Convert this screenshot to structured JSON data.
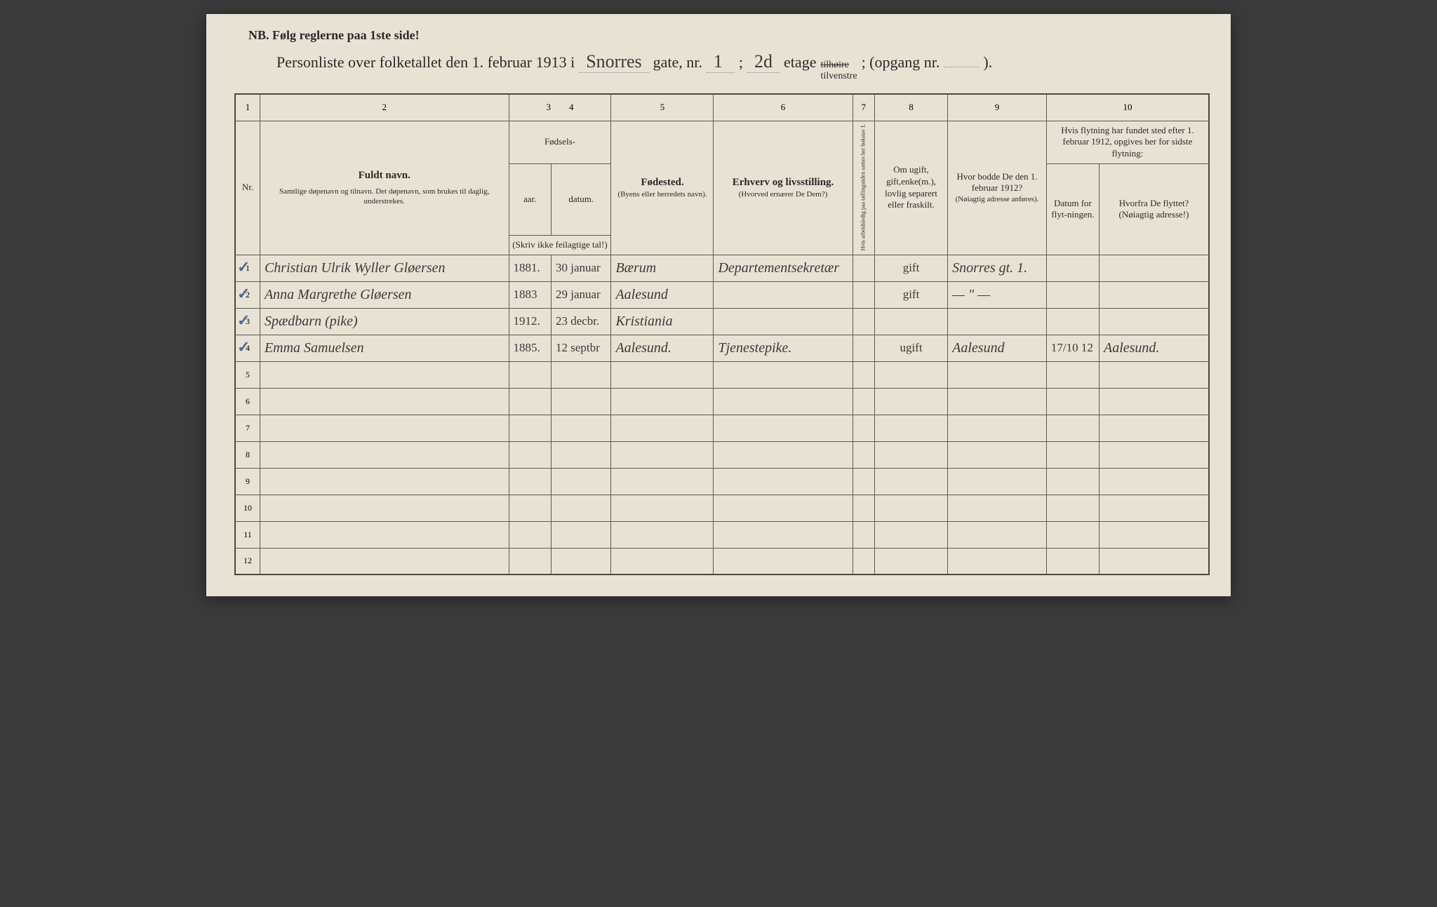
{
  "nb_header": "NB.  Følg reglerne paa 1ste side!",
  "title": {
    "prefix": "Personliste over folketallet den 1. februar 1913 i",
    "street": "Snorres",
    "gate_label": "gate, nr.",
    "gate_nr": "1",
    "semicolon": ";",
    "etage_nr": "2d",
    "etage_label": "etage",
    "tilhoire": "tilhøire",
    "tilvenstre": "tilvenstre",
    "opgang": "; (opgang nr.",
    "opgang_val": "",
    "close": ")."
  },
  "colnums": [
    "1",
    "2",
    "3",
    "4",
    "5",
    "6",
    "7",
    "8",
    "9",
    "10"
  ],
  "headers": {
    "nr": "Nr.",
    "fuldt": "Fuldt navn.",
    "fuldt_sub": "Samtlige døpenavn og tilnavn.  Det døpenavn, som brukes til daglig, understrekes.",
    "fodsels": "Fødsels-",
    "aar": "aar.",
    "datum": "datum.",
    "skriv": "(Skriv ikke feilagtige tal!)",
    "fodested": "Fødested.",
    "fodested_sub": "(Byens eller herredets navn).",
    "erhverv": "Erhverv og livsstilling.",
    "erhverv_sub": "(Hvorved ernærer De Dem?)",
    "col7": "Hvis arbeidsledig paa tællingstiden sættes her bokstav L",
    "ugift": "Om ugift, gift,enke(m.), lovlig separert eller fraskilt.",
    "bodde": "Hvor bodde De den 1. februar 1912?",
    "bodde_sub": "(Nøiagtig adresse anføres).",
    "flytning": "Hvis flytning har fundet sted efter 1. februar 1912, opgives her for sidste flytning:",
    "datum_flyt": "Datum for flyt-ningen.",
    "hvorfra": "Hvorfra De flyttet? (Nøiagtig adresse!)"
  },
  "rows": [
    {
      "n": "1",
      "check": "✓",
      "name": "Christian Ulrik Wyller Gløersen",
      "aar": "1881.",
      "datum": "30 januar",
      "sted": "Bærum",
      "erhverv": "Departementsekretær",
      "c7": "",
      "ugift": "gift",
      "bodde": "Snorres gt. 1.",
      "fdat": "",
      "hvor": ""
    },
    {
      "n": "2",
      "check": "✓",
      "name": "Anna Margrethe Gløersen",
      "aar": "1883",
      "datum": "29 januar",
      "sted": "Aalesund",
      "erhverv": "",
      "c7": "",
      "ugift": "gift",
      "bodde": "— \" —",
      "fdat": "",
      "hvor": ""
    },
    {
      "n": "3",
      "check": "✓",
      "name": "Spædbarn (pike)",
      "aar": "1912.",
      "datum": "23 decbr.",
      "sted": "Kristiania",
      "erhverv": "",
      "c7": "",
      "ugift": "",
      "bodde": "",
      "fdat": "",
      "hvor": ""
    },
    {
      "n": "4",
      "check": "✓",
      "name": "Emma Samuelsen",
      "aar": "1885.",
      "datum": "12 septbr",
      "sted": "Aalesund.",
      "erhverv": "Tjenestepike.",
      "c7": "",
      "ugift": "ugift",
      "bodde": "Aalesund",
      "fdat": "17/10 12",
      "hvor": "Aalesund."
    },
    {
      "n": "5"
    },
    {
      "n": "6"
    },
    {
      "n": "7"
    },
    {
      "n": "8"
    },
    {
      "n": "9"
    },
    {
      "n": "10"
    },
    {
      "n": "11"
    },
    {
      "n": "12"
    }
  ],
  "colors": {
    "paper": "#e8e2d4",
    "ink": "#2a2a2a",
    "border": "#5a5a4a",
    "pencil_check": "#4a6a9a",
    "handwriting": "#3a3a3a"
  }
}
